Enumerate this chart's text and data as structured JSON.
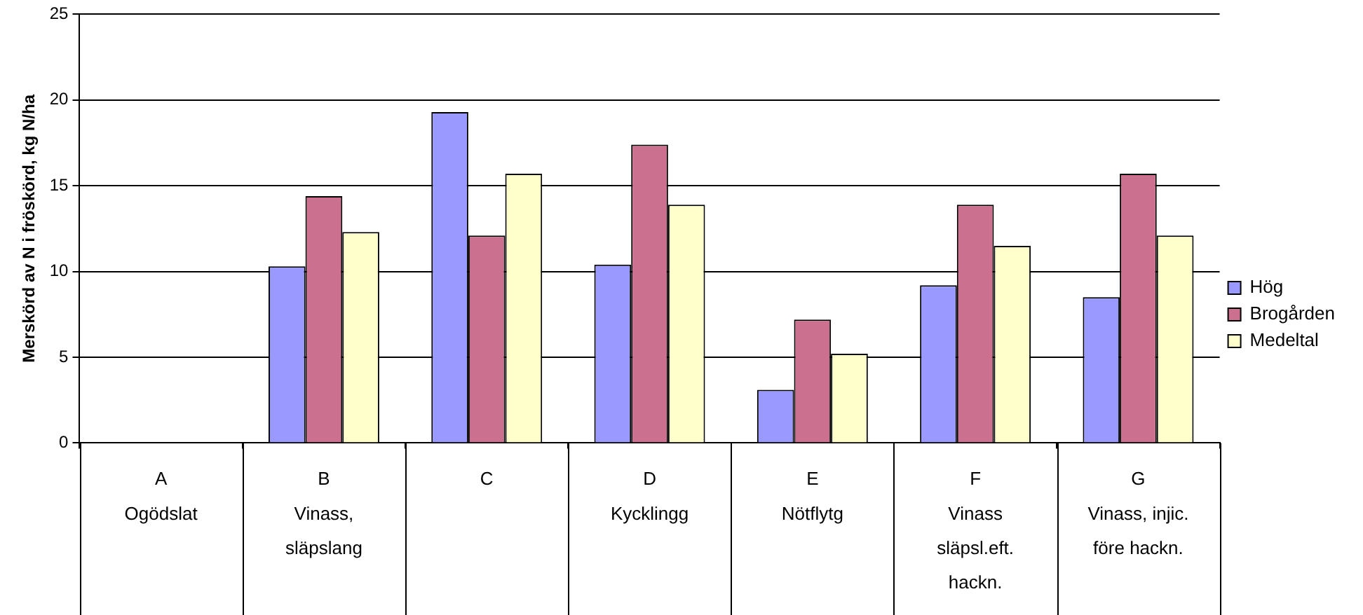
{
  "chart_data": {
    "type": "bar",
    "ylabel": "Merskörd av N i fröskörd, kg N/ha",
    "categories": [
      "A\nOgödslat",
      "B\nVinass,\nsläpslang",
      "C",
      "D\nKycklingg",
      "E\nNötflytg",
      "F\nVinass\nsläpsl.eft.\nhackn.",
      "G\nVinass, injic.\nföre hackn."
    ],
    "series": [
      {
        "name": "Hög",
        "color": "#9999ff",
        "values": [
          0,
          10.3,
          19.3,
          10.4,
          3.1,
          9.2,
          8.5
        ]
      },
      {
        "name": "Brogården",
        "color": "#cc7090",
        "values": [
          0,
          14.4,
          12.1,
          17.4,
          7.2,
          13.9,
          15.7
        ]
      },
      {
        "name": "Medeltal",
        "color": "#ffffcc",
        "values": [
          0,
          12.3,
          15.7,
          13.9,
          5.2,
          11.5,
          12.1
        ]
      }
    ],
    "ylim": [
      0,
      25
    ],
    "yticks": [
      0,
      5,
      10,
      15,
      20,
      25
    ],
    "grid": "y",
    "legend": "right"
  }
}
